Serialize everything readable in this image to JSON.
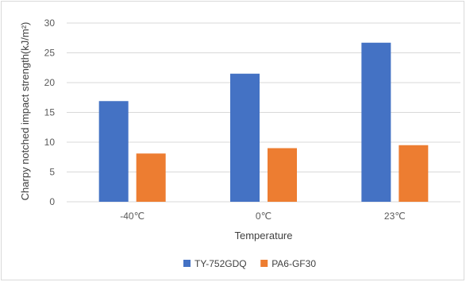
{
  "chart_data": {
    "type": "bar",
    "categories": [
      "-40℃",
      "0℃",
      "23℃"
    ],
    "series": [
      {
        "name": "TY-752GDQ",
        "color": "#4472c4",
        "values": [
          16.9,
          21.5,
          26.7
        ]
      },
      {
        "name": "PA6-GF30",
        "color": "#ed7d31",
        "values": [
          8.1,
          9.0,
          9.5
        ]
      }
    ],
    "title": "",
    "xlabel": "Temperature",
    "ylabel": "Charpy notched impact strength(kJ/m²)",
    "ylim": [
      0,
      30
    ],
    "yticks": [
      "0",
      "5",
      "10",
      "15",
      "20",
      "25",
      "30"
    ],
    "grid": true,
    "legend_position": "bottom",
    "gridline_color": "#d9d9d9"
  }
}
